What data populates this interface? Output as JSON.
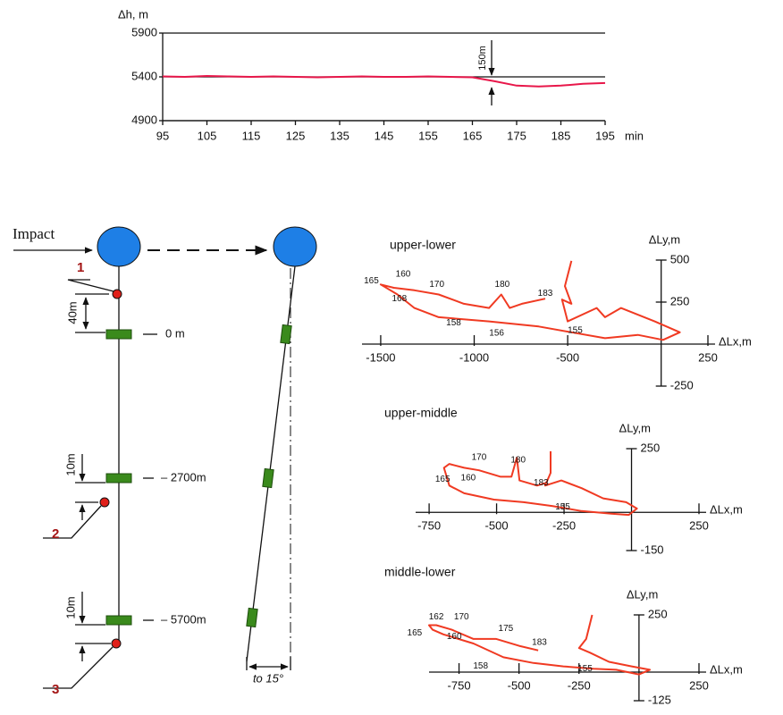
{
  "chart_data": [
    {
      "type": "line",
      "y_label": "Δh, m",
      "x_label": "min",
      "annotation": "150m",
      "x": [
        95,
        100,
        105,
        110,
        115,
        120,
        125,
        130,
        135,
        140,
        145,
        150,
        155,
        160,
        165,
        170,
        175,
        180,
        185,
        190,
        195
      ],
      "y": [
        5405,
        5400,
        5410,
        5405,
        5400,
        5405,
        5400,
        5395,
        5400,
        5405,
        5400,
        5400,
        5405,
        5400,
        5395,
        5350,
        5300,
        5290,
        5300,
        5320,
        5330
      ],
      "color": "#e8174a",
      "xlim": [
        95,
        195
      ],
      "ylim": [
        4900,
        5900
      ],
      "xticks": [
        95,
        105,
        115,
        125,
        135,
        145,
        155,
        165,
        175,
        185,
        195
      ],
      "yticks": [
        4900,
        5400,
        5900
      ],
      "grid": true
    },
    {
      "type": "line",
      "title": "upper-lower",
      "x_label": "ΔLx,m",
      "y_label": "ΔLy,m",
      "color": "#f03a22",
      "x": [
        -480,
        -515,
        -480,
        -530,
        -500,
        -345,
        -300,
        -215,
        -35,
        100,
        10,
        -125,
        -300,
        -480,
        -655,
        -920,
        -1190,
        -1320,
        -1410,
        -1500,
        -1430,
        -1320,
        -1190,
        -1055,
        -920,
        -855,
        -810,
        -745,
        -620
      ],
      "y": [
        495,
        345,
        240,
        265,
        135,
        215,
        160,
        215,
        135,
        70,
        25,
        55,
        35,
        70,
        105,
        135,
        160,
        215,
        295,
        355,
        335,
        320,
        295,
        240,
        215,
        295,
        215,
        240,
        270
      ],
      "time_marks": [
        {
          "time": 165,
          "x": -1550,
          "y": 375
        },
        {
          "time": 160,
          "x": -1380,
          "y": 415
        },
        {
          "time": 168,
          "x": -1400,
          "y": 270
        },
        {
          "time": 170,
          "x": -1200,
          "y": 355
        },
        {
          "time": 180,
          "x": -850,
          "y": 355
        },
        {
          "time": 183,
          "x": -620,
          "y": 300
        },
        {
          "time": 158,
          "x": -1110,
          "y": 125
        },
        {
          "time": 156,
          "x": -880,
          "y": 65
        },
        {
          "time": 155,
          "x": -460,
          "y": 80
        }
      ],
      "xlim": [
        -1600,
        250
      ],
      "ylim": [
        -250,
        500
      ],
      "xticks": [
        -1500,
        -1000,
        -500,
        250
      ],
      "yticks": [
        -250,
        250,
        500
      ]
    },
    {
      "type": "line",
      "title": "upper-middle",
      "x_label": "ΔLx,m",
      "y_label": "ΔLy,m",
      "color": "#f03a22",
      "x": [
        -300,
        -300,
        -320,
        -260,
        -185,
        -105,
        -20,
        20,
        -10,
        -75,
        -185,
        -295,
        -400,
        -510,
        -620,
        -675,
        -695,
        -675,
        -620,
        -565,
        -485,
        -445,
        -425,
        -415,
        -350,
        -320
      ],
      "y": [
        240,
        155,
        105,
        125,
        95,
        55,
        40,
        15,
        -10,
        -5,
        5,
        25,
        40,
        50,
        75,
        105,
        175,
        190,
        175,
        165,
        140,
        140,
        215,
        125,
        105,
        115
      ],
      "time_marks": [
        {
          "time": 165,
          "x": -700,
          "y": 130
        },
        {
          "time": 160,
          "x": -605,
          "y": 135
        },
        {
          "time": 170,
          "x": -565,
          "y": 215
        },
        {
          "time": 180,
          "x": -420,
          "y": 205
        },
        {
          "time": 183,
          "x": -335,
          "y": 115
        },
        {
          "time": 155,
          "x": -255,
          "y": 20
        }
      ],
      "xlim": [
        -800,
        250
      ],
      "ylim": [
        -150,
        250
      ],
      "xticks": [
        -750,
        -500,
        -250,
        250
      ],
      "yticks": [
        -150,
        250
      ]
    },
    {
      "type": "line",
      "title": "middle-lower",
      "x_label": "ΔLx,m",
      "y_label": "ΔLy,m",
      "color": "#f03a22",
      "x": [
        -195,
        -220,
        -250,
        -205,
        -125,
        -30,
        45,
        0,
        -95,
        -190,
        -315,
        -440,
        -565,
        -690,
        -815,
        -860,
        -875,
        -845,
        -780,
        -690,
        -595,
        -500,
        -420
      ],
      "y": [
        250,
        145,
        105,
        85,
        45,
        25,
        10,
        -10,
        10,
        15,
        25,
        40,
        65,
        125,
        165,
        185,
        205,
        205,
        185,
        145,
        145,
        115,
        95
      ],
      "time_marks": [
        {
          "time": 162,
          "x": -845,
          "y": 240
        },
        {
          "time": 165,
          "x": -935,
          "y": 170
        },
        {
          "time": 160,
          "x": -770,
          "y": 155
        },
        {
          "time": 170,
          "x": -740,
          "y": 240
        },
        {
          "time": 175,
          "x": -555,
          "y": 190
        },
        {
          "time": 183,
          "x": -415,
          "y": 130
        },
        {
          "time": 158,
          "x": -660,
          "y": 25
        },
        {
          "time": 155,
          "x": -225,
          "y": 15
        }
      ],
      "xlim": [
        -875,
        250
      ],
      "ylim": [
        -125,
        250
      ],
      "xticks": [
        -750,
        -500,
        -250,
        250
      ],
      "yticks": [
        -125,
        250
      ]
    }
  ],
  "diagram": {
    "impact": "Impact",
    "sensors": [
      "1",
      "2",
      "3"
    ],
    "depths": [
      "0 m",
      "– 2700m",
      "– 5700m"
    ],
    "spacings": [
      "40m",
      "10m",
      "10m"
    ],
    "tilt": "to 15°"
  }
}
